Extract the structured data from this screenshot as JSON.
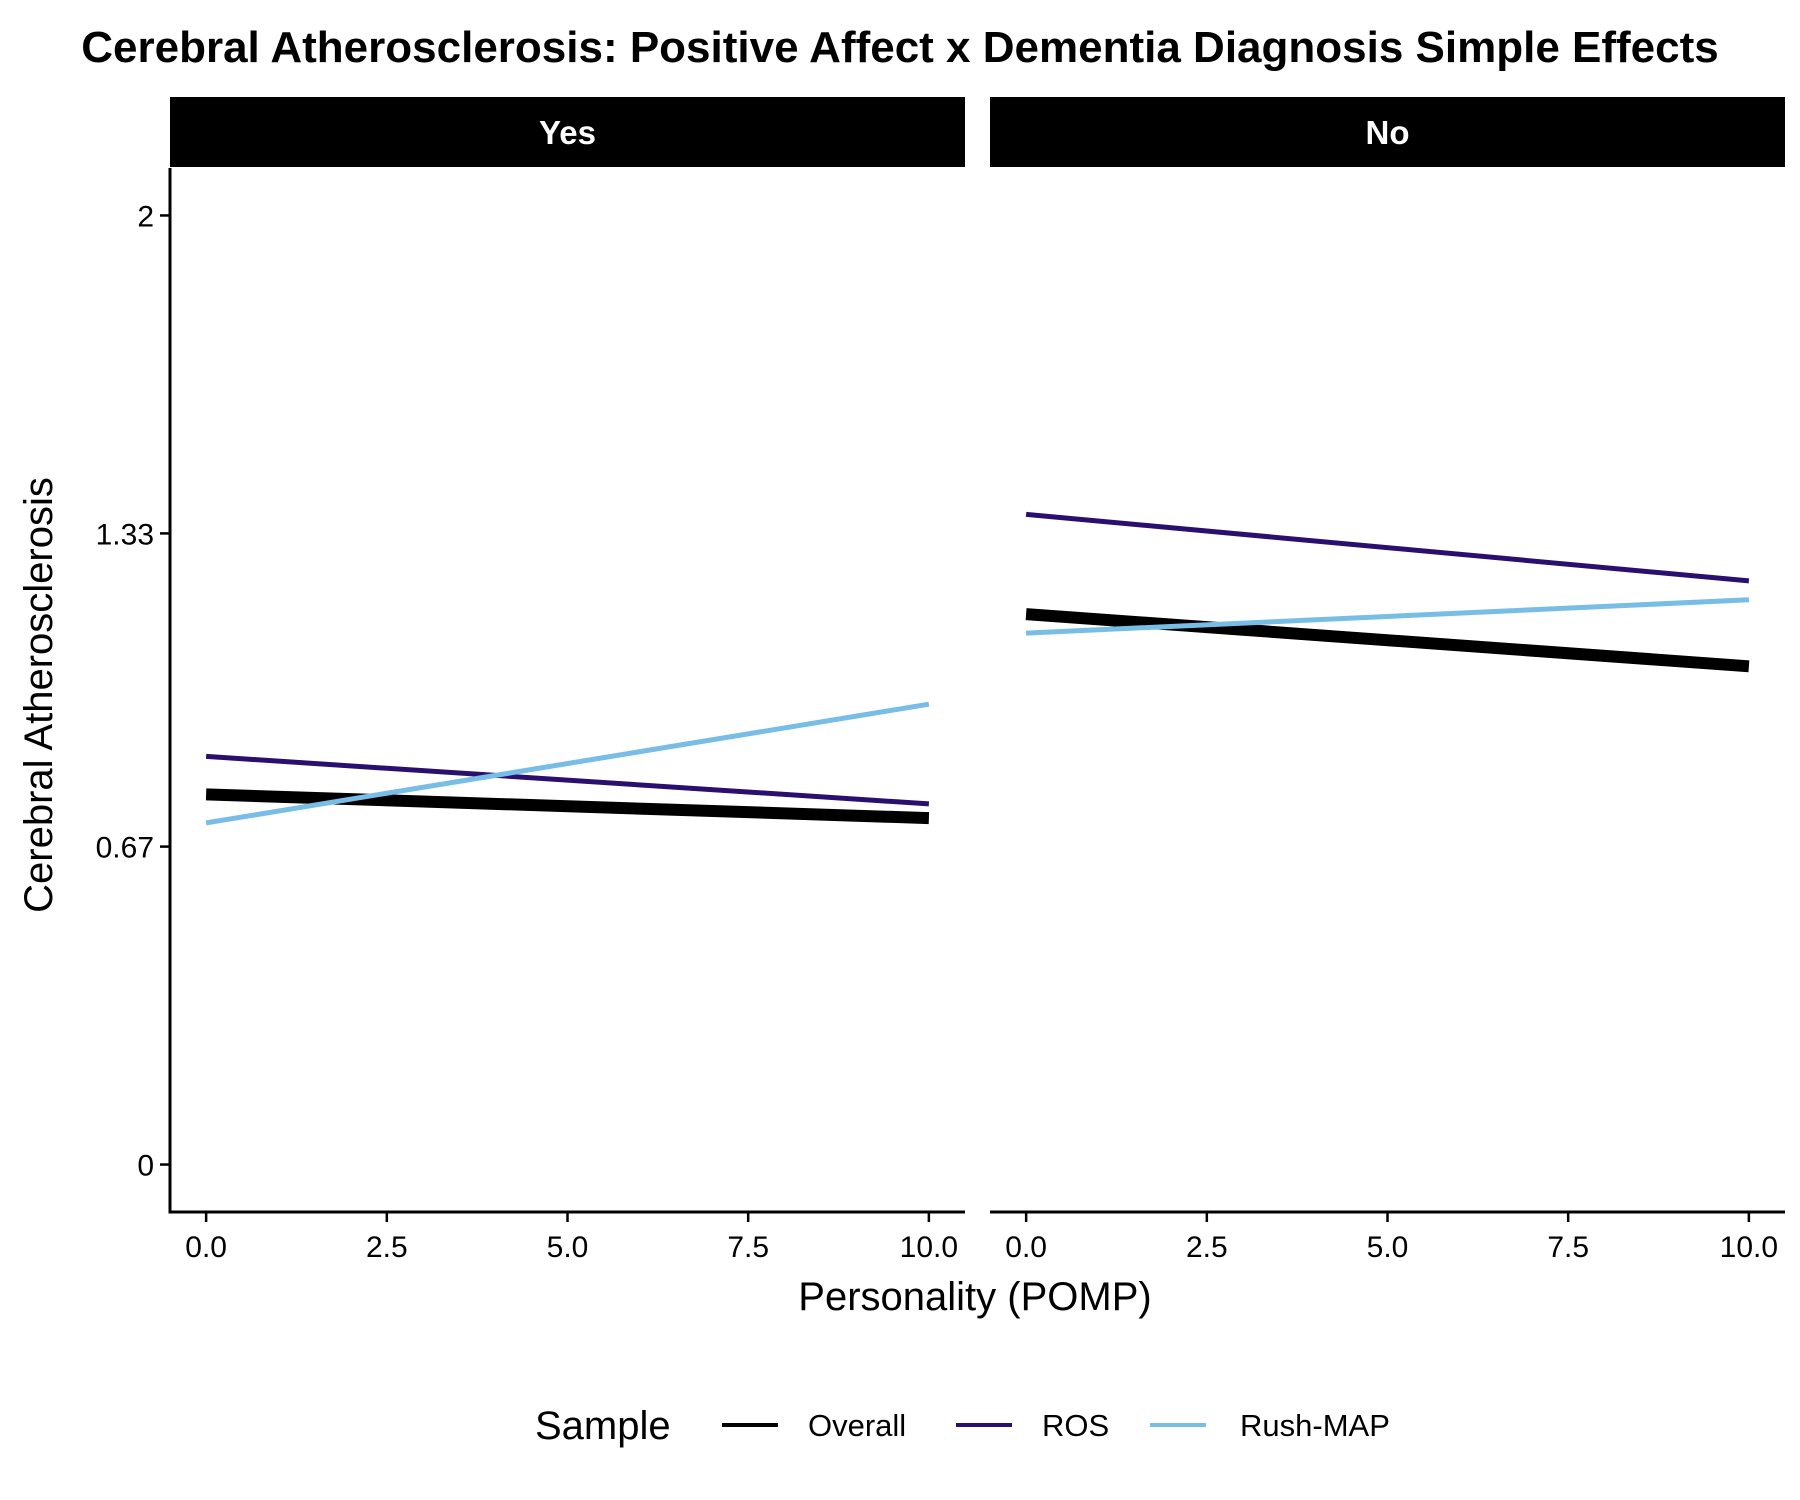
{
  "chart_data": {
    "type": "line",
    "title": "Cerebral Atherosclerosis: Positive Affect x Dementia Diagnosis Simple Effects",
    "xlabel": "Personality (POMP)",
    "ylabel": "Cerebral Atherosclerosis",
    "xlim": [
      -0.5,
      10.5
    ],
    "ylim": [
      -0.1,
      2.1
    ],
    "x_ticks": [
      0,
      2.5,
      5,
      7.5,
      10
    ],
    "x_tick_labels": [
      "0.0",
      "2.5",
      "5.0",
      "7.5",
      "10.0"
    ],
    "y_ticks": [
      0,
      0.67,
      1.33,
      2
    ],
    "y_tick_labels": [
      "0",
      "0.67",
      "1.33",
      "2"
    ],
    "grid": false,
    "legend": {
      "title": "Sample",
      "position": "bottom",
      "entries": [
        "Overall",
        "ROS",
        "Rush-MAP"
      ]
    },
    "series_colors": {
      "Overall": "#000000",
      "ROS": "#2a0f6e",
      "Rush-MAP": "#78bde6"
    },
    "panels": [
      {
        "strip_label": "Yes",
        "series": [
          {
            "name": "Overall",
            "x": [
              0,
              10
            ],
            "y": [
              0.78,
              0.73
            ]
          },
          {
            "name": "ROS",
            "x": [
              0,
              10
            ],
            "y": [
              0.86,
              0.76
            ]
          },
          {
            "name": "Rush-MAP",
            "x": [
              0,
              10
            ],
            "y": [
              0.72,
              0.97
            ]
          }
        ]
      },
      {
        "strip_label": "No",
        "series": [
          {
            "name": "Overall",
            "x": [
              0,
              10
            ],
            "y": [
              1.16,
              1.05
            ]
          },
          {
            "name": "ROS",
            "x": [
              0,
              10
            ],
            "y": [
              1.37,
              1.23
            ]
          },
          {
            "name": "Rush-MAP",
            "x": [
              0,
              10
            ],
            "y": [
              1.12,
              1.19
            ]
          }
        ]
      }
    ]
  }
}
